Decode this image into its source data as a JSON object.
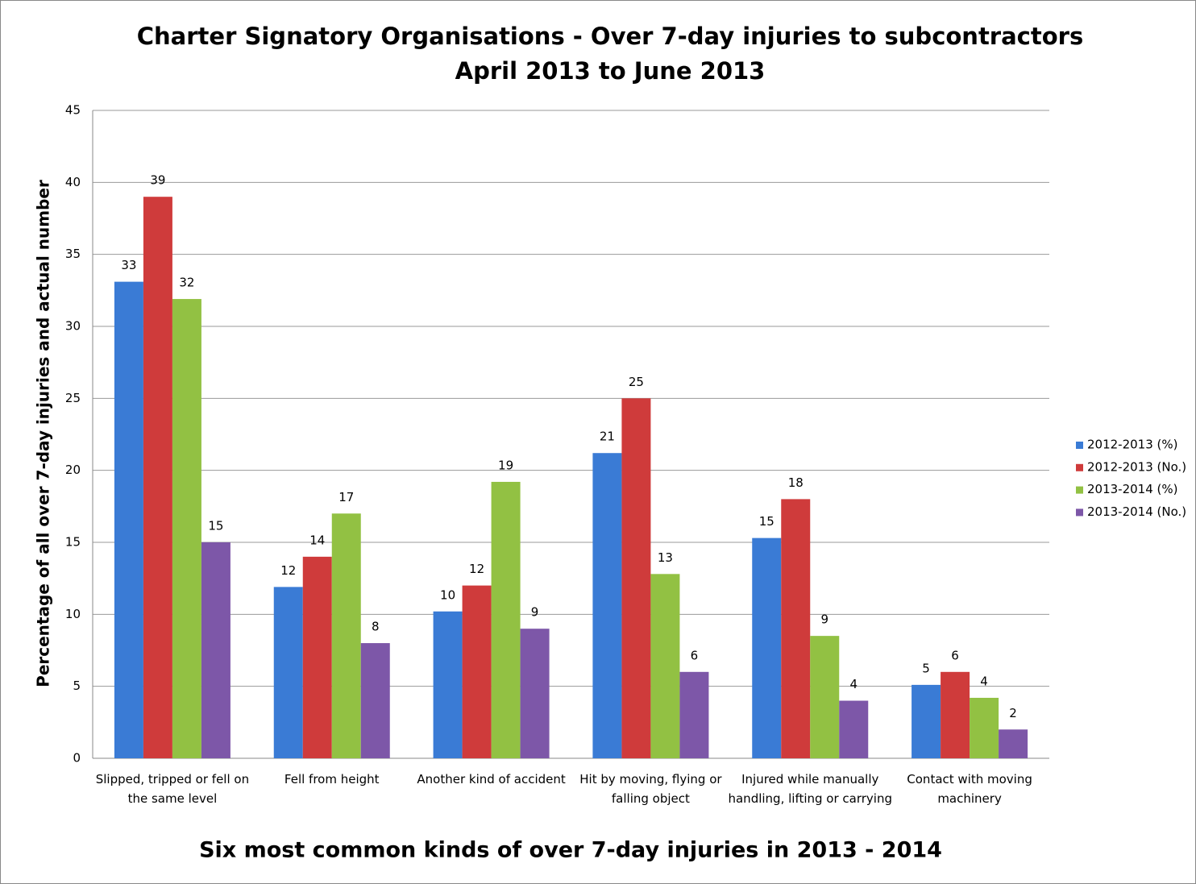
{
  "chart_data": {
    "type": "bar",
    "title": "Charter Signatory Organisations - Over 7-day injuries to subcontractors",
    "subtitle": "April 2013 to June 2013",
    "x_label": "Six most common kinds of over 7-day injuries in 2013 - 2014",
    "y_label": "Percentage of all over 7-day injuries and actual number",
    "categories": [
      "Slipped, tripped or fell on the same level",
      "Fell from height",
      "Another kind of accident",
      "Hit by moving, flying or falling object",
      "Injured while manually handling, lifting or carrying",
      "Contact with moving machinery"
    ],
    "series": [
      {
        "name": "2012-2013 (%)",
        "color": "#3a7bd5",
        "values": [
          33.1,
          11.9,
          10.2,
          21.2,
          15.3,
          5.1
        ],
        "value_labels": [
          "33",
          "12",
          "10",
          "21",
          "15",
          "5"
        ]
      },
      {
        "name": "2012-2013 (No.)",
        "color": "#cf3b3b",
        "values": [
          39,
          14,
          12,
          25,
          18,
          6
        ]
      },
      {
        "name": "2013-2014 (%)",
        "color": "#92c143",
        "values": [
          31.9,
          17.0,
          19.2,
          12.8,
          8.5,
          4.2
        ],
        "value_labels": [
          "32",
          "17",
          "19",
          "13",
          "9",
          "4"
        ]
      },
      {
        "name": "2013-2014 (No.)",
        "color": "#7d57a8",
        "values": [
          15,
          8,
          9,
          6,
          4,
          2
        ]
      }
    ],
    "ylim": [
      0,
      45
    ],
    "yticks": [
      0,
      5,
      10,
      15,
      20,
      25,
      30,
      35,
      40,
      45
    ],
    "grid": true,
    "legend": "right"
  }
}
